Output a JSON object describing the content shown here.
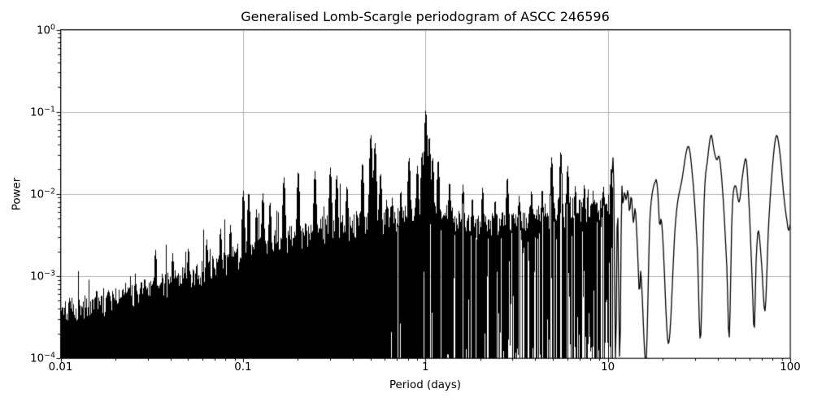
{
  "chart_data": {
    "type": "line",
    "title": "Generalised Lomb-Scargle periodogram of ASCC 246596",
    "xlabel": "Period (days)",
    "ylabel": "Power",
    "x_scale": "log",
    "y_scale": "log",
    "xlim": [
      0.01,
      100
    ],
    "ylim": [
      0.0001,
      1
    ],
    "grid": true,
    "grid_color": "#b0b0b0",
    "line_color": "#000000",
    "background": "#ffffff",
    "legend": null,
    "x_ticks": [
      {
        "value": 0.01,
        "label": "0.01"
      },
      {
        "value": 0.1,
        "label": "0.1"
      },
      {
        "value": 1,
        "label": "1"
      },
      {
        "value": 10,
        "label": "10"
      },
      {
        "value": 100,
        "label": "100"
      }
    ],
    "y_ticks": [
      {
        "value": 1,
        "base": "10",
        "exp": "0"
      },
      {
        "value": 0.1,
        "base": "10",
        "exp": "−1"
      },
      {
        "value": 0.01,
        "base": "10",
        "exp": "−2"
      },
      {
        "value": 0.001,
        "base": "10",
        "exp": "−3"
      },
      {
        "value": 0.0001,
        "base": "10",
        "exp": "−4"
      }
    ],
    "seed": 11,
    "noise_envelope": [
      [
        0.01,
        0.00042
      ],
      [
        0.015,
        0.00052
      ],
      [
        0.02,
        0.00062
      ],
      [
        0.03,
        0.00075
      ],
      [
        0.045,
        0.001
      ],
      [
        0.07,
        0.00145
      ],
      [
        0.1,
        0.0022
      ],
      [
        0.15,
        0.003
      ],
      [
        0.22,
        0.0038
      ],
      [
        0.35,
        0.0046
      ],
      [
        0.6,
        0.0052
      ],
      [
        1.0,
        0.0062
      ],
      [
        1.7,
        0.0052
      ],
      [
        2.6,
        0.005
      ],
      [
        4.0,
        0.006
      ],
      [
        6.0,
        0.007
      ],
      [
        9.0,
        0.008
      ],
      [
        10.7,
        0.0085
      ]
    ],
    "peaks": [
      [
        0.033,
        0.0021
      ],
      [
        0.041,
        0.0019
      ],
      [
        0.05,
        0.0022
      ],
      [
        0.063,
        0.0028
      ],
      [
        0.075,
        0.0038
      ],
      [
        0.085,
        0.0042
      ],
      [
        0.1,
        0.011
      ],
      [
        0.107,
        0.0105
      ],
      [
        0.118,
        0.0065
      ],
      [
        0.128,
        0.0102
      ],
      [
        0.14,
        0.008
      ],
      [
        0.167,
        0.016
      ],
      [
        0.2,
        0.019
      ],
      [
        0.247,
        0.019
      ],
      [
        0.3,
        0.021
      ],
      [
        0.325,
        0.017
      ],
      [
        0.37,
        0.0125
      ],
      [
        0.45,
        0.024
      ],
      [
        0.5,
        0.053
      ],
      [
        0.527,
        0.042
      ],
      [
        0.565,
        0.018
      ],
      [
        0.61,
        0.0085
      ],
      [
        0.655,
        0.009
      ],
      [
        0.73,
        0.011
      ],
      [
        0.81,
        0.028
      ],
      [
        0.9,
        0.022
      ],
      [
        0.955,
        0.032
      ],
      [
        1.0,
        0.105
      ],
      [
        1.045,
        0.05
      ],
      [
        1.09,
        0.028
      ],
      [
        1.17,
        0.026
      ],
      [
        1.35,
        0.014
      ],
      [
        1.6,
        0.013
      ],
      [
        1.8,
        0.009
      ],
      [
        2.05,
        0.012
      ],
      [
        2.4,
        0.0085
      ],
      [
        2.8,
        0.016
      ],
      [
        3.25,
        0.0095
      ],
      [
        3.8,
        0.011
      ],
      [
        4.35,
        0.0115
      ],
      [
        4.9,
        0.028
      ],
      [
        5.5,
        0.033
      ],
      [
        6.0,
        0.022
      ],
      [
        6.6,
        0.0125
      ],
      [
        7.4,
        0.013
      ],
      [
        8.3,
        0.0085
      ],
      [
        9.3,
        0.0095
      ],
      [
        10.4,
        0.021
      ]
    ],
    "smooth_curve": [
      [
        10.6,
        0.018
      ],
      [
        10.75,
        0.021
      ],
      [
        11.03,
        9e-05
      ],
      [
        11.3,
        0.007
      ],
      [
        11.63,
        9e-05
      ],
      [
        11.9,
        0.0095
      ],
      [
        12.1,
        0.0075
      ],
      [
        12.35,
        0.0105
      ],
      [
        12.6,
        0.0085
      ],
      [
        12.9,
        0.011
      ],
      [
        13.15,
        0.006
      ],
      [
        13.45,
        0.0095
      ],
      [
        13.8,
        0.0045
      ],
      [
        14.15,
        0.0065
      ],
      [
        14.6,
        0.0018
      ],
      [
        14.9,
        0.0006
      ],
      [
        15.15,
        0.0011
      ],
      [
        16.2,
        9e-05
      ],
      [
        17.0,
        0.005
      ],
      [
        18.3,
        0.0145
      ],
      [
        18.8,
        0.0105
      ],
      [
        19.2,
        0.0042
      ],
      [
        19.8,
        0.004
      ],
      [
        21.5,
        0.00015
      ],
      [
        23.5,
        0.0045
      ],
      [
        25.5,
        0.015
      ],
      [
        27.7,
        0.038
      ],
      [
        29.5,
        0.012
      ],
      [
        31.0,
        0.002
      ],
      [
        32.2,
        0.00017
      ],
      [
        33.8,
        0.009
      ],
      [
        35.2,
        0.026
      ],
      [
        36.8,
        0.052
      ],
      [
        38.3,
        0.033
      ],
      [
        39.5,
        0.026
      ],
      [
        41.0,
        0.027
      ],
      [
        43.0,
        0.008
      ],
      [
        45.0,
        0.0012
      ],
      [
        46.3,
        0.00018
      ],
      [
        48.0,
        0.006
      ],
      [
        49.9,
        0.0127
      ],
      [
        52.5,
        0.008
      ],
      [
        55.0,
        0.018
      ],
      [
        57.5,
        0.0252
      ],
      [
        60.0,
        0.005
      ],
      [
        62.0,
        0.0008
      ],
      [
        63.5,
        0.00022
      ],
      [
        65.0,
        0.0015
      ],
      [
        66.8,
        0.0036
      ],
      [
        69.5,
        0.0015
      ],
      [
        72.8,
        0.00038
      ],
      [
        76.0,
        0.004
      ],
      [
        80.0,
        0.022
      ],
      [
        84.0,
        0.0515
      ],
      [
        88.0,
        0.03
      ],
      [
        92.0,
        0.01
      ],
      [
        96.0,
        0.0047
      ],
      [
        98.0,
        0.0036
      ],
      [
        100.0,
        0.0042
      ]
    ],
    "dense_region": {
      "min_period": 0.01,
      "max_period": 10.6,
      "gap_onset_log_period": -0.35,
      "max_gap_fraction": 0.65
    }
  }
}
